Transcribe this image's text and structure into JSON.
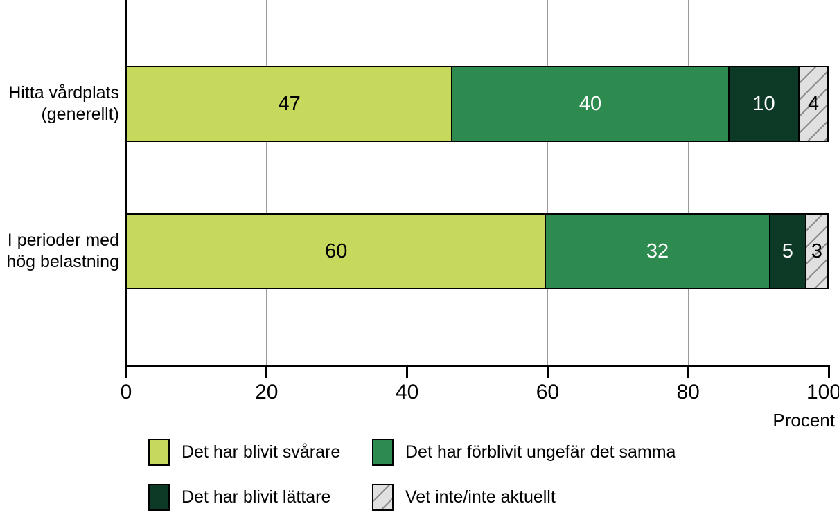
{
  "chart_data": {
    "type": "bar",
    "orientation": "horizontal",
    "stacked": true,
    "categories": [
      "Hitta vårdplats (generellt)",
      "I perioder med hög belastning"
    ],
    "category_lines": [
      [
        "Hitta vårdplats",
        "(generellt)"
      ],
      [
        "I perioder med",
        "hög belastning"
      ]
    ],
    "series": [
      {
        "name": "Det har blivit svårare",
        "values": [
          47,
          60
        ],
        "color": "#c6d95d",
        "label_color": "#000000",
        "pattern": "solid"
      },
      {
        "name": "Det har förblivit ungefär det samma",
        "values": [
          40,
          32
        ],
        "color": "#2e8b50",
        "label_color": "#ffffff",
        "pattern": "solid"
      },
      {
        "name": "Det har blivit lättare",
        "values": [
          10,
          5
        ],
        "color": "#0d3a27",
        "label_color": "#ffffff",
        "pattern": "solid"
      },
      {
        "name": "Vet inte/inte aktuellt",
        "values": [
          4,
          3
        ],
        "color": "#e0e0e0",
        "label_color": "#000000",
        "pattern": "diagonal-hatch",
        "hatch_line_color": "#8c8c8c"
      }
    ],
    "xlabel": "Procent",
    "xlim": [
      0,
      100
    ],
    "xticks": [
      0,
      20,
      40,
      60,
      80,
      100
    ],
    "grid": true,
    "legend_position": "bottom"
  },
  "colors": {
    "axis": "#000000",
    "gridline": "#9a9a9a",
    "background": "#ffffff"
  }
}
